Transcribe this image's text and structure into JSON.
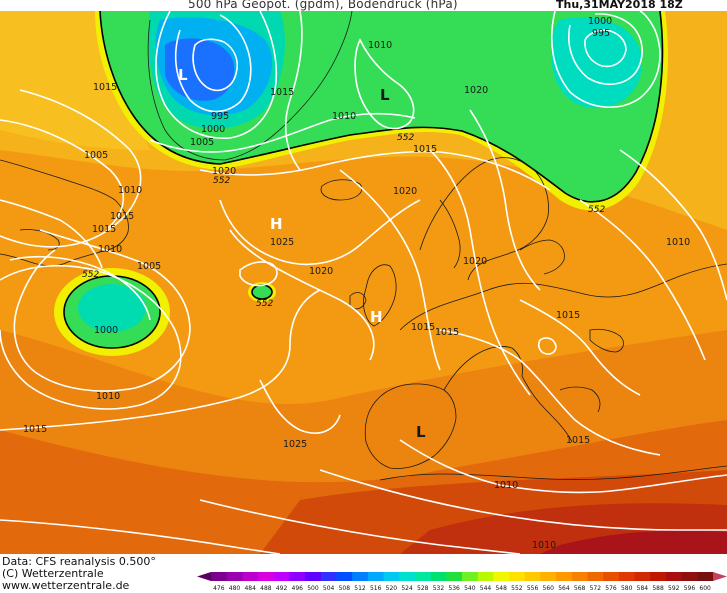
{
  "header": {
    "title": "500 hPa Geopot. (gpdm), Bodendruck (hPa)",
    "datetime": "Thu,31MAY2018 18Z"
  },
  "credits": {
    "data_source": "Data: CFS reanalysis 0.500°",
    "copyright": "(C) Wetterzentrale",
    "website": "www.wetterzentrale.de"
  },
  "map": {
    "pressure_labels": [
      {
        "text": "1015"
      },
      {
        "text": "1005"
      },
      {
        "text": "1010"
      },
      {
        "text": "1015"
      },
      {
        "text": "1015"
      },
      {
        "text": "1010"
      },
      {
        "text": "1005"
      },
      {
        "text": "1000"
      },
      {
        "text": "1010"
      },
      {
        "text": "1015"
      },
      {
        "text": "995"
      },
      {
        "text": "1000"
      },
      {
        "text": "1005"
      },
      {
        "text": "1015"
      },
      {
        "text": "1010"
      },
      {
        "text": "1020"
      },
      {
        "text": "1010"
      },
      {
        "text": "1020"
      },
      {
        "text": "1000"
      },
      {
        "text": "995"
      },
      {
        "text": "1015"
      },
      {
        "text": "1020"
      },
      {
        "text": "1025"
      },
      {
        "text": "1020"
      },
      {
        "text": "1025"
      },
      {
        "text": "1020"
      },
      {
        "text": "1015"
      },
      {
        "text": "1015"
      },
      {
        "text": "1015"
      },
      {
        "text": "1010"
      },
      {
        "text": "1015"
      },
      {
        "text": "1010"
      },
      {
        "text": "1010"
      }
    ],
    "geopotential_labels": [
      {
        "text": "552"
      },
      {
        "text": "552"
      },
      {
        "text": "552"
      },
      {
        "text": "552"
      },
      {
        "text": "552"
      }
    ],
    "system_markers": [
      {
        "text": "L"
      },
      {
        "text": "L"
      },
      {
        "text": "H"
      },
      {
        "text": "H"
      },
      {
        "text": "L"
      }
    ]
  },
  "legend": {
    "colors": [
      "#5a0060",
      "#7a0090",
      "#9a00b0",
      "#bb00cc",
      "#d800e0",
      "#c000ff",
      "#9000ff",
      "#6000ff",
      "#3030ff",
      "#0050ff",
      "#0080ff",
      "#00a8ff",
      "#00c8f0",
      "#00e0d0",
      "#00e8a0",
      "#00e070",
      "#20e040",
      "#70f020",
      "#b8f800",
      "#f0f800",
      "#ffe000",
      "#ffc800",
      "#ffb000",
      "#ff9800",
      "#f88000",
      "#f06800",
      "#e85000",
      "#e03800",
      "#d02800",
      "#c01800",
      "#a81010",
      "#901010",
      "#781010",
      "#a02040",
      "#b83050",
      "#c84060"
    ],
    "ticks": [
      "476",
      "480",
      "484",
      "488",
      "492",
      "496",
      "500",
      "504",
      "508",
      "512",
      "516",
      "520",
      "524",
      "528",
      "532",
      "536",
      "540",
      "544",
      "548",
      "552",
      "556",
      "560",
      "564",
      "568",
      "572",
      "576",
      "580",
      "584",
      "588",
      "592",
      "596",
      "600"
    ]
  }
}
